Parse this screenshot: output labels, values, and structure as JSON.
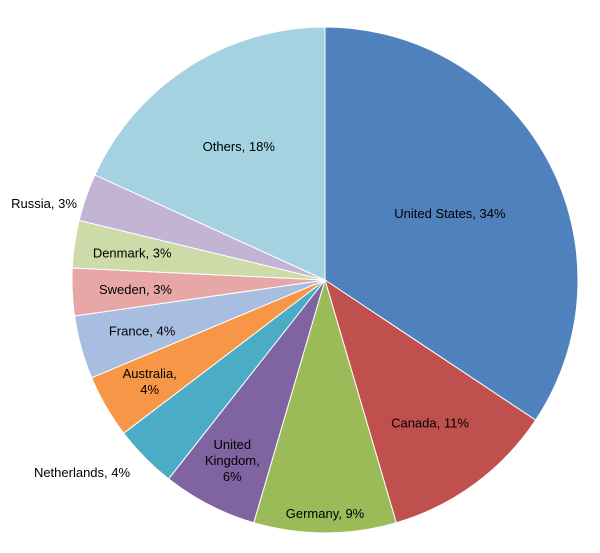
{
  "chart_data": {
    "type": "pie",
    "title": "",
    "slices": [
      {
        "name": "United States",
        "value": 34,
        "label": "United States, 34%",
        "color": "#4F81BD"
      },
      {
        "name": "Canada",
        "value": 11,
        "label": "Canada, 11%",
        "color": "#C0504D"
      },
      {
        "name": "Germany",
        "value": 9,
        "label": "Germany, 9%",
        "color": "#9BBB59"
      },
      {
        "name": "United Kingdom",
        "value": 6,
        "label": "United Kingdom, 6%",
        "color": "#8064A2"
      },
      {
        "name": "Netherlands",
        "value": 4,
        "label": "Netherlands, 4%",
        "color": "#4BACC6"
      },
      {
        "name": "Australia",
        "value": 4,
        "label": "Australia, 4%",
        "color": "#F79646"
      },
      {
        "name": "France",
        "value": 4,
        "label": "France, 4%",
        "color": "#A7BEE0"
      },
      {
        "name": "Sweden",
        "value": 3,
        "label": "Sweden, 3%",
        "color": "#E6A7A6"
      },
      {
        "name": "Denmark",
        "value": 3,
        "label": "Denmark, 3%",
        "color": "#CCDBA8"
      },
      {
        "name": "Russia",
        "value": 3,
        "label": "Russia, 3%",
        "color": "#C3B4D6"
      },
      {
        "name": "Others",
        "value": 18,
        "label": "Others, 18%",
        "color": "#A4D2E0"
      }
    ],
    "start_angle": "12 o'clock",
    "direction": "clockwise",
    "legend": "none"
  }
}
